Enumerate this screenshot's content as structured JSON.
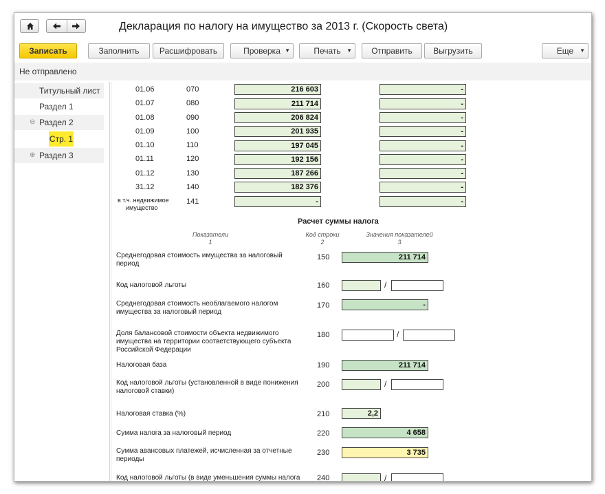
{
  "window": {
    "title": "Декларация по налогу на имущество за 2013 г. (Скорость света)",
    "icons": {
      "home": "home-icon",
      "back": "arrow-left-icon",
      "forward": "arrow-right-icon"
    }
  },
  "toolbar": {
    "save": "Записать",
    "fill": "Заполнить",
    "decode": "Расшифровать",
    "check": "Проверка",
    "print": "Печать",
    "send": "Отправить",
    "export": "Выгрузить",
    "more": "Еще"
  },
  "status": "Не отправлено",
  "sidebar": {
    "items": [
      {
        "label": "Титульный лист"
      },
      {
        "label": "Раздел 1"
      },
      {
        "label": "Раздел 2"
      },
      {
        "label": "Стр. 1"
      },
      {
        "label": "Раздел 3"
      }
    ]
  },
  "table1": {
    "rows": [
      {
        "date": "01.06",
        "code": "070",
        "value": "216 603",
        "value2": "-"
      },
      {
        "date": "01.07",
        "code": "080",
        "value": "211 714",
        "value2": "-"
      },
      {
        "date": "01.08",
        "code": "090",
        "value": "206 824",
        "value2": "-"
      },
      {
        "date": "01.09",
        "code": "100",
        "value": "201 935",
        "value2": "-"
      },
      {
        "date": "01.10",
        "code": "110",
        "value": "197 045",
        "value2": "-"
      },
      {
        "date": "01.11",
        "code": "120",
        "value": "192 156",
        "value2": "-"
      },
      {
        "date": "01.12",
        "code": "130",
        "value": "187 266",
        "value2": "-"
      },
      {
        "date": "31.12",
        "code": "140",
        "value": "182 376",
        "value2": "-"
      }
    ],
    "realty_label_1": "в т.ч. недвижимое",
    "realty_label_2": "имущество",
    "realty_code": "141",
    "realty_value": "-",
    "realty_value2": "-"
  },
  "section": {
    "heading": "Расчет суммы налога",
    "col1": "Показатели",
    "col1n": "1",
    "col2": "Код строки",
    "col2n": "2",
    "col3": "Значения показателей",
    "col3n": "3"
  },
  "calc": {
    "r150": {
      "label1": "Среднегодовая стоимость имущества за налоговый",
      "label2": "период",
      "code": "150",
      "value": "211 714"
    },
    "r160": {
      "label": "Код налоговой льготы",
      "code": "160",
      "slash": "/"
    },
    "r170": {
      "label1": "Среднегодовая стоимость необлагаемого налогом",
      "label2": "имущества за налоговый период",
      "code": "170",
      "value": "-"
    },
    "r180": {
      "label1": "Доля балансовой стоимости объекта недвижимого",
      "label2": "имущества на территории соответствующего субъекта",
      "label3": "Российской Федерации",
      "code": "180",
      "slash": "/"
    },
    "r190": {
      "label": "Налоговая база",
      "code": "190",
      "value": "211 714"
    },
    "r200": {
      "label1": "Код налоговой льготы (установленной в виде понижения",
      "label2": "налоговой ставки)",
      "code": "200",
      "slash": "/"
    },
    "r210": {
      "label": "Налоговая ставка (%)",
      "code": "210",
      "value": "2,2"
    },
    "r220": {
      "label": "Сумма налога за налоговый период",
      "code": "220",
      "value": "4 658"
    },
    "r230": {
      "label1": "Сумма авансовых платежей, исчисленная за отчетные",
      "label2": "периоды",
      "code": "230",
      "value": "3 735"
    },
    "r240": {
      "label1": "Код налоговой льготы (в виде уменьшения суммы налога",
      "code": "240",
      "slash": "/"
    }
  }
}
